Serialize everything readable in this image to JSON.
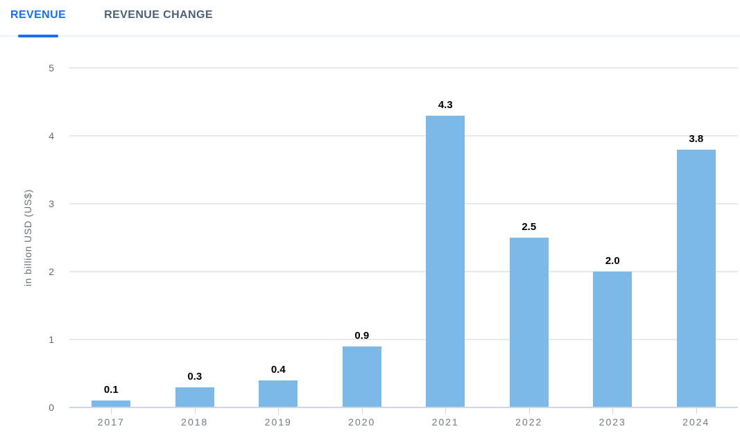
{
  "theme": {
    "accent_blue": "#1a6ef0",
    "inactive_tab_color": "#4d6078",
    "bar_color": "#7cb8e8",
    "grid_color": "#e9e9e9",
    "axis_line_color": "#ccd6eb",
    "axis_label_color": "#6f7a85",
    "value_label_color": "#000000"
  },
  "tabs": [
    {
      "label": "REVENUE",
      "active": true
    },
    {
      "label": "REVENUE CHANGE",
      "active": false
    }
  ],
  "chart_data": {
    "type": "bar",
    "title": "",
    "categories": [
      "2017",
      "2018",
      "2019",
      "2020",
      "2021",
      "2022",
      "2023",
      "2024"
    ],
    "values": [
      0.1,
      0.3,
      0.4,
      0.9,
      4.3,
      2.5,
      2.0,
      3.8
    ],
    "value_labels": [
      "0.1",
      "0.3",
      "0.4",
      "0.9",
      "4.3",
      "2.5",
      "2.0",
      "3.8"
    ],
    "xlabel": "",
    "ylabel": "in billion USD (US$)",
    "ylim": [
      0,
      5
    ],
    "yticks": [
      0,
      1,
      2,
      3,
      4,
      5
    ],
    "grid": true,
    "legend": "none"
  }
}
